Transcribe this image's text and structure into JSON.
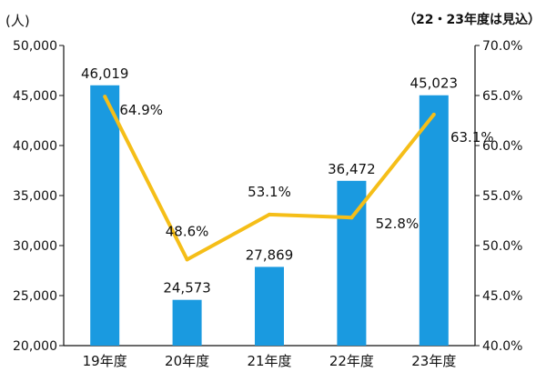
{
  "chart_data": {
    "type": "bar",
    "categories": [
      "19年度",
      "20年度",
      "21年度",
      "22年度",
      "23年度"
    ],
    "series": [
      {
        "values": [
          46019,
          24573,
          27869,
          36472,
          45023
        ],
        "axis": "left",
        "kind": "bar",
        "color": "#1a9ae0"
      },
      {
        "values": [
          64.9,
          48.6,
          53.1,
          52.8,
          63.1
        ],
        "axis": "right",
        "kind": "line",
        "color": "#f5be18"
      }
    ],
    "bar_labels": [
      "46,019",
      "24,573",
      "27,869",
      "36,472",
      "45,023"
    ],
    "line_labels": [
      "64.9%",
      "48.6%",
      "53.1%",
      "52.8%",
      "63.1%"
    ],
    "y_left": {
      "unit": "(人)",
      "ylim": [
        20000,
        50000
      ],
      "ticks": [
        20000,
        25000,
        30000,
        35000,
        40000,
        45000,
        50000
      ],
      "tick_labels": [
        "20,000",
        "25,000",
        "30,000",
        "35,000",
        "40,000",
        "45,000",
        "50,000"
      ]
    },
    "y_right": {
      "ylim": [
        40,
        70
      ],
      "ticks": [
        40,
        45,
        50,
        55,
        60,
        65,
        70
      ],
      "tick_labels": [
        "40.0%",
        "45.0%",
        "50.0%",
        "55.0%",
        "60.0%",
        "65.0%",
        "70.0%"
      ]
    },
    "note": "（22・23年度は見込）",
    "grid": false
  }
}
